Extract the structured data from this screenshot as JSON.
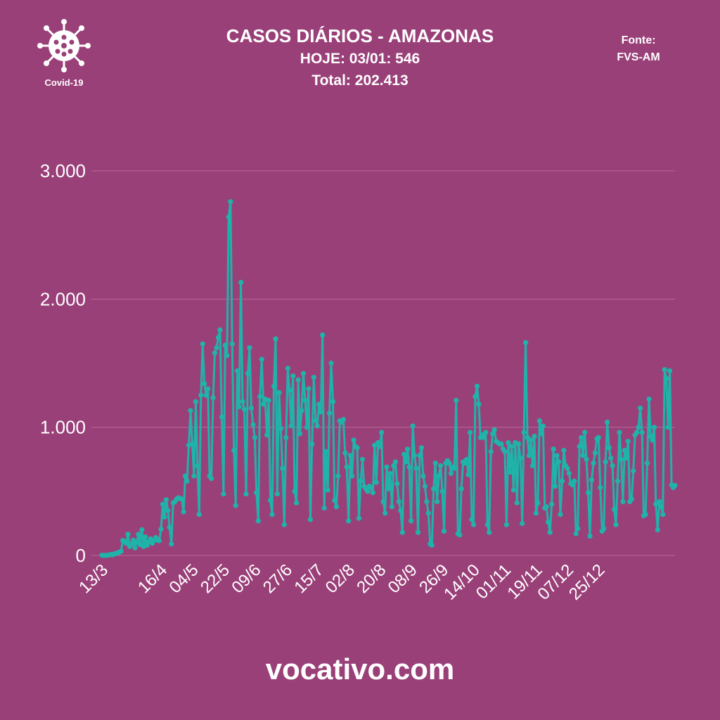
{
  "header": {
    "title": "CASOS DIÁRIOS - AMAZONAS",
    "subtitle": "HOJE: 03/01: 546",
    "total": "Total: 202.413"
  },
  "source": {
    "line1": "Fonte:",
    "line2": "FVS-AM"
  },
  "logo": {
    "label": "Covid-19",
    "icon": "virus-icon"
  },
  "footer": {
    "text": "vocativo.com"
  },
  "colors": {
    "background": "#9a4079",
    "line": "#1fb3a9",
    "grid": "#b5679a",
    "text": "#ffffff"
  },
  "chart_data": {
    "type": "line",
    "title": "CASOS DIÁRIOS - AMAZONAS",
    "xlabel": "",
    "ylabel": "",
    "ylim": [
      0,
      3000
    ],
    "yticks": [
      0,
      1000,
      2000,
      3000
    ],
    "ytick_labels": [
      "0",
      "1.000",
      "2.000",
      "3.000"
    ],
    "grid": true,
    "x_start": "13/3",
    "x_end": "03/01",
    "xtick_labels": [
      "13/3",
      "16/4",
      "04/5",
      "22/5",
      "09/6",
      "27/6",
      "15/7",
      "02/8",
      "20/8",
      "08/9",
      "26/9",
      "14/10",
      "01/11",
      "19/11",
      "07/12",
      "25/12"
    ],
    "xtick_day_index": [
      0,
      34,
      52,
      70,
      88,
      106,
      124,
      142,
      160,
      178,
      196,
      214,
      232,
      250,
      268,
      286
    ],
    "series": [
      {
        "values": [
          2,
          0,
          1,
          1,
          4,
          8,
          5,
          12,
          16,
          20,
          25,
          33,
          117,
          110,
          95,
          165,
          70,
          90,
          120,
          60,
          105,
          165,
          85,
          200,
          70,
          145,
          80,
          105,
          130,
          95,
          118,
          140,
          120,
          115,
          205,
          400,
          300,
          435,
          350,
          220,
          90,
          410,
          420,
          440,
          450,
          445,
          440,
          340,
          620,
          580,
          860,
          1130,
          870,
          620,
          1200,
          700,
          320,
          1250,
          1650,
          1340,
          1250,
          1300,
          620,
          600,
          1230,
          1580,
          1620,
          1700,
          1760,
          1080,
          480,
          1640,
          1560,
          2640,
          2760,
          1650,
          820,
          390,
          1440,
          1160,
          2130,
          1200,
          1140,
          480,
          1420,
          1620,
          1150,
          1020,
          920,
          490,
          270,
          1240,
          1530,
          1180,
          1220,
          940,
          1210,
          430,
          320,
          1320,
          1690,
          480,
          1270,
          990,
          680,
          240,
          920,
          1460,
          1290,
          1010,
          1400,
          500,
          410,
          1370,
          950,
          1130,
          1420,
          1210,
          1000,
          1300,
          280,
          870,
          1390,
          1050,
          1010,
          1180,
          1120,
          1720,
          370,
          810,
          510,
          1110,
          1500,
          1200,
          430,
          380,
          620,
          1050,
          1040,
          1060,
          800,
          690,
          270,
          780,
          620,
          900,
          850,
          840,
          290,
          580,
          750,
          540,
          520,
          500,
          540,
          530,
          490,
          860,
          570,
          880,
          850,
          960,
          420,
          330,
          690,
          520,
          640,
          380,
          700,
          730,
          560,
          420,
          350,
          180,
          790,
          730,
          830,
          690,
          270,
          1010,
          780,
          680,
          180,
          780,
          840,
          620,
          540,
          420,
          330,
          90,
          80,
          520,
          720,
          420,
          620,
          700,
          500,
          190,
          720,
          740,
          720,
          640,
          690,
          680,
          1210,
          170,
          160,
          520,
          730,
          720,
          750,
          630,
          960,
          280,
          240,
          1240,
          1320,
          1180,
          920,
          940,
          920,
          960,
          240,
          180,
          810,
          950,
          980,
          890,
          880,
          870,
          870,
          830,
          810,
          240,
          880,
          650,
          850,
          510,
          880,
          410,
          870,
          760,
          250,
          960,
          1660,
          920,
          780,
          900,
          700,
          930,
          330,
          410,
          1050,
          950,
          1010,
          370,
          380,
          260,
          180,
          400,
          830,
          540,
          780,
          730,
          320,
          580,
          820,
          700,
          680,
          640,
          560,
          550,
          580,
          170,
          210,
          850,
          920,
          780,
          960,
          750,
          490,
          150,
          590,
          720,
          800,
          910,
          920,
          530,
          190,
          210,
          730,
          1040,
          840,
          760,
          700,
          360,
          240,
          580,
          960,
          750,
          420,
          820,
          760,
          890,
          420,
          440,
          660,
          940,
          960,
          1000,
          1150,
          960,
          310,
          320,
          720,
          1220,
          930,
          900,
          1000,
          400,
          200,
          420,
          380,
          320,
          1450,
          1380,
          1000,
          1440,
          550,
          530,
          546
        ]
      }
    ]
  }
}
